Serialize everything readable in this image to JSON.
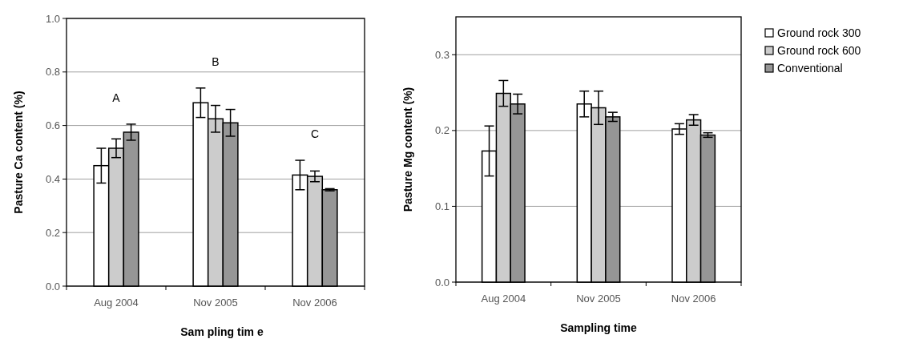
{
  "chart_data": [
    {
      "type": "bar",
      "categories": [
        "Aug 2004",
        "Nov 2005",
        "Nov 2006"
      ],
      "xlabel": "Sam pling tim e",
      "ylabel": "Pasture Ca content (%)",
      "ylim": [
        0,
        1
      ],
      "yticks": [
        {
          "value": 0,
          "label": "0.0"
        },
        {
          "value": 0.2,
          "label": "0.2"
        },
        {
          "value": 0.4,
          "label": "0.4"
        },
        {
          "value": 0.6,
          "label": "0.6"
        },
        {
          "value": 0.8,
          "label": "0.8"
        },
        {
          "value": 1,
          "label": "1.0"
        }
      ],
      "grid": "y",
      "legend": false,
      "series": [
        {
          "color": "#ffffff",
          "values": [
            0.45,
            0.685,
            0.415
          ],
          "errors": [
            0.065,
            0.055,
            0.055
          ]
        },
        {
          "color": "#cccccc",
          "values": [
            0.515,
            0.625,
            0.41
          ],
          "errors": [
            0.035,
            0.05,
            0.02
          ]
        },
        {
          "color": "#969696",
          "values": [
            0.575,
            0.61,
            0.36
          ],
          "errors": [
            0.03,
            0.05,
            0.004
          ]
        }
      ],
      "annotations": [
        "A",
        "B",
        "C"
      ]
    },
    {
      "type": "bar",
      "categories": [
        "Aug 2004",
        "Nov 2005",
        "Nov 2006"
      ],
      "xlabel": "Sampling time",
      "ylabel": "Pasture Mg content (%)",
      "ylim": [
        0,
        0.35
      ],
      "yticks": [
        {
          "value": 0,
          "label": "0.0"
        },
        0.1,
        0.2,
        0.3
      ],
      "grid": "y",
      "legend": "right",
      "series": [
        {
          "name": "Ground rock 300",
          "color": "#ffffff",
          "values": [
            0.173,
            0.235,
            0.202
          ],
          "errors": [
            0.033,
            0.017,
            0.007
          ]
        },
        {
          "name": "Ground rock 600",
          "color": "#cccccc",
          "values": [
            0.249,
            0.23,
            0.214
          ],
          "errors": [
            0.017,
            0.022,
            0.007
          ]
        },
        {
          "name": "Conventional",
          "color": "#969696",
          "values": [
            0.235,
            0.218,
            0.194
          ],
          "errors": [
            0.013,
            0.006,
            0.003
          ]
        }
      ]
    }
  ]
}
